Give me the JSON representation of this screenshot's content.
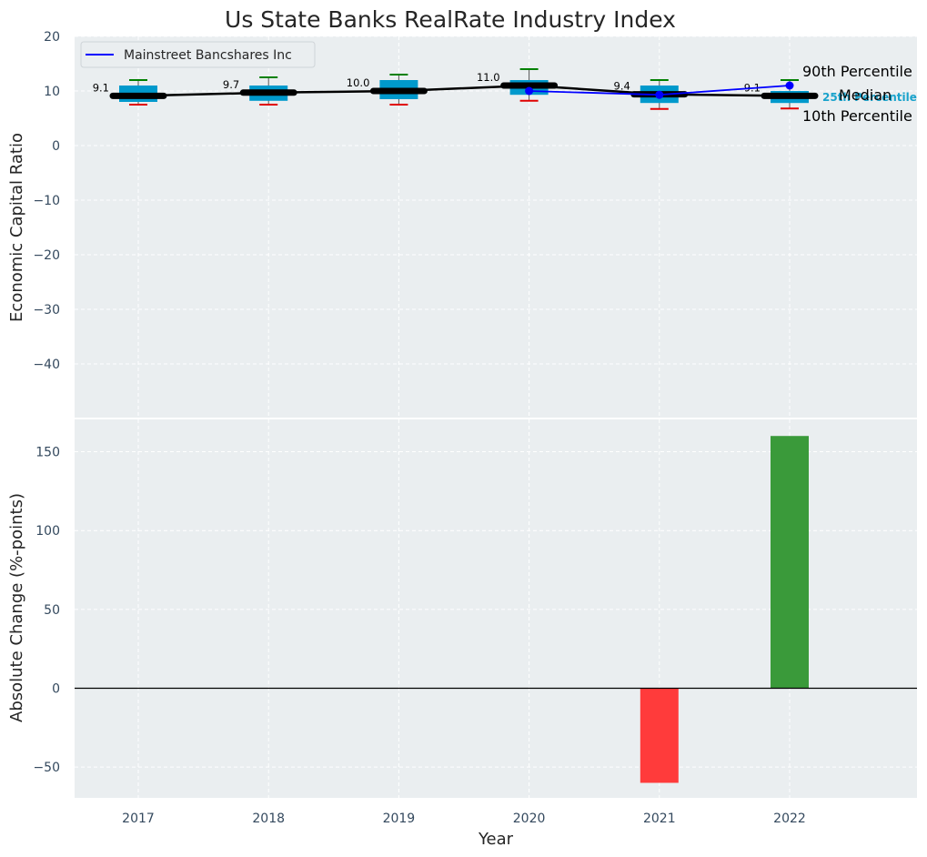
{
  "chart_data": [
    {
      "type": "box",
      "title": "Us State Banks RealRate Industry Index",
      "ylabel": "Economic Capital Ratio",
      "ylim": [
        -50,
        20
      ],
      "yticks": [
        "20",
        "10",
        "0",
        "−10",
        "−20",
        "−30",
        "−40"
      ],
      "grid": true,
      "legend": {
        "position": "top-left",
        "entries": [
          "Mainstreet Bancshares Inc"
        ]
      },
      "categories": [
        "2017",
        "2018",
        "2019",
        "2020",
        "2021",
        "2022"
      ],
      "boxes": [
        {
          "year": "2017",
          "p10": 7.5,
          "p25": 8.0,
          "median": 9.1,
          "p75": 11.0,
          "p90": 12.0,
          "label": "9.1"
        },
        {
          "year": "2018",
          "p10": 7.5,
          "p25": 8.2,
          "median": 9.7,
          "p75": 11.0,
          "p90": 12.5,
          "label": "9.7"
        },
        {
          "year": "2019",
          "p10": 7.5,
          "p25": 8.5,
          "median": 10.0,
          "p75": 12.0,
          "p90": 13.0,
          "label": "10.0"
        },
        {
          "year": "2020",
          "p10": 8.2,
          "p25": 9.3,
          "median": 11.0,
          "p75": 12.0,
          "p90": 14.0,
          "label": "11.0"
        },
        {
          "year": "2021",
          "p10": 6.7,
          "p25": 7.8,
          "median": 9.4,
          "p75": 11.0,
          "p90": 12.0,
          "label": "9.4"
        },
        {
          "year": "2022",
          "p10": 6.8,
          "p25": 7.8,
          "median": 9.1,
          "p75": 10.0,
          "p90": 12.0,
          "label": "9.1"
        }
      ],
      "series": [
        {
          "name": "Mainstreet Bancshares Inc",
          "color": "#0000ff",
          "x": [
            "2020",
            "2021",
            "2022"
          ],
          "values": [
            10.0,
            9.3,
            11.0
          ]
        }
      ],
      "annotations": {
        "p90": "90th Percentile",
        "median": "Median",
        "p25": "25th Percentile",
        "p10": "10th Percentile"
      }
    },
    {
      "type": "bar",
      "xlabel": "Year",
      "ylabel": "Absolute Change (%-points)",
      "ylim": [
        -70,
        175
      ],
      "yticks": [
        "150",
        "100",
        "50",
        "0",
        "−50"
      ],
      "categories": [
        "2017",
        "2018",
        "2019",
        "2020",
        "2021",
        "2022"
      ],
      "values": [
        0,
        0,
        0,
        0,
        -60,
        160
      ],
      "colors": {
        "positive": "#3a9a3a",
        "negative": "#ff3b3b"
      }
    }
  ],
  "colors": {
    "panel_bg": "#eaeef0",
    "box_fill": "#0099cc",
    "whisker_top": "#008000",
    "whisker_bottom": "#e00000",
    "median_line": "#000000",
    "tick_text": "#34495e",
    "percentile_25_text": "#1aa3cc"
  }
}
